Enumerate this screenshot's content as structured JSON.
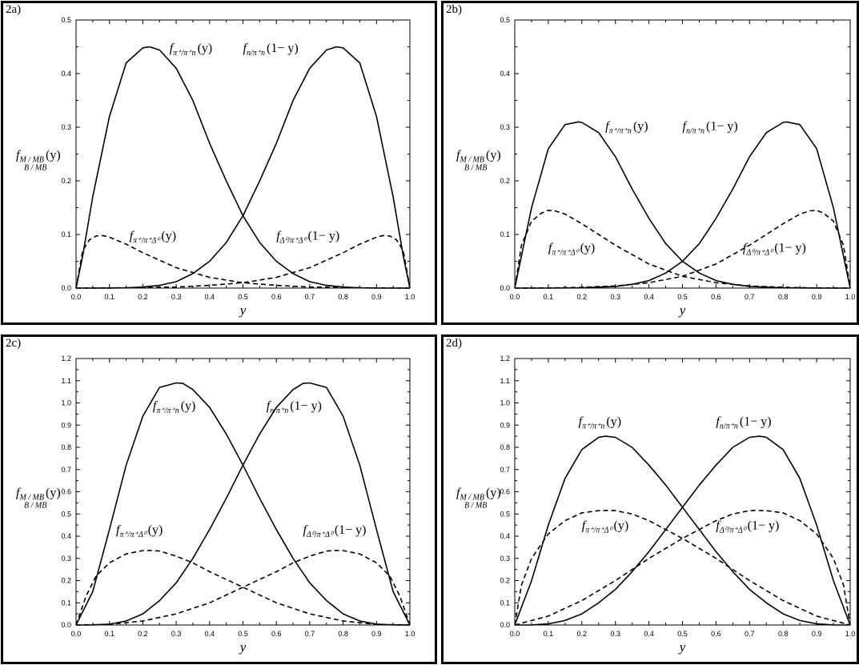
{
  "chart_data": [
    {
      "panel": "2a)",
      "type": "line",
      "xlabel": "y",
      "ylabel": "f",
      "ylabel_sub": "M / MB",
      "ylabel_arg": "(y)",
      "ylabel_sub2": "B / MB",
      "xlim": [
        0.0,
        1.0
      ],
      "ylim": [
        0.0,
        0.5
      ],
      "xticks": [
        "0.0",
        "0.1",
        "0.2",
        "0.3",
        "0.4",
        "0.5",
        "0.6",
        "0.7",
        "0.8",
        "0.9",
        "1.0"
      ],
      "yticks": [
        "0.0",
        "0.1",
        "0.2",
        "0.3",
        "0.4",
        "0.5"
      ],
      "series": [
        {
          "style": "solid",
          "x": [
            0,
            0.02,
            0.05,
            0.1,
            0.15,
            0.2,
            0.22,
            0.25,
            0.3,
            0.35,
            0.4,
            0.45,
            0.5,
            0.55,
            0.6,
            0.65,
            0.7,
            0.75,
            0.8,
            0.85,
            0.9,
            0.95,
            1.0
          ],
          "y": [
            0,
            0.06,
            0.17,
            0.32,
            0.42,
            0.448,
            0.45,
            0.444,
            0.41,
            0.35,
            0.27,
            0.2,
            0.135,
            0.085,
            0.05,
            0.027,
            0.012,
            0.005,
            0.002,
            0.0005,
            0.0001,
            0,
            0
          ]
        },
        {
          "style": "solid",
          "x": [
            0,
            0.05,
            0.1,
            0.15,
            0.2,
            0.25,
            0.3,
            0.35,
            0.4,
            0.45,
            0.5,
            0.55,
            0.6,
            0.65,
            0.7,
            0.75,
            0.78,
            0.8,
            0.85,
            0.9,
            0.95,
            0.98,
            1.0
          ],
          "y": [
            0,
            0,
            0.0001,
            0.0005,
            0.002,
            0.005,
            0.012,
            0.027,
            0.05,
            0.085,
            0.135,
            0.2,
            0.27,
            0.35,
            0.41,
            0.444,
            0.45,
            0.448,
            0.42,
            0.32,
            0.17,
            0.06,
            0
          ]
        },
        {
          "style": "dashed",
          "x": [
            0,
            0.02,
            0.04,
            0.06,
            0.08,
            0.1,
            0.15,
            0.2,
            0.3,
            0.4,
            0.5,
            0.6,
            0.7,
            0.8,
            0.9,
            1.0
          ],
          "y": [
            0,
            0.07,
            0.09,
            0.097,
            0.098,
            0.095,
            0.082,
            0.066,
            0.038,
            0.02,
            0.01,
            0.005,
            0.002,
            0.001,
            0.0003,
            0
          ]
        },
        {
          "style": "dashed",
          "x": [
            0,
            0.1,
            0.2,
            0.3,
            0.4,
            0.5,
            0.6,
            0.7,
            0.8,
            0.85,
            0.9,
            0.92,
            0.94,
            0.96,
            0.98,
            1.0
          ],
          "y": [
            0,
            0.0003,
            0.001,
            0.002,
            0.005,
            0.01,
            0.02,
            0.038,
            0.066,
            0.082,
            0.095,
            0.098,
            0.097,
            0.09,
            0.07,
            0
          ]
        }
      ],
      "annotations": [
        {
          "base": "f",
          "sub": "π⁺/π⁺n",
          "arg": "(y)",
          "x": 0.28,
          "y": 0.44
        },
        {
          "base": "f",
          "sub": "n/π⁺n",
          "arg": "(1− y)",
          "x": 0.5,
          "y": 0.44
        },
        {
          "base": "f",
          "sub": "π⁺/π⁺Δ⁰",
          "arg": "(y)",
          "x": 0.16,
          "y": 0.09
        },
        {
          "base": "f",
          "sub": "Δ⁰/π⁺Δ⁰",
          "arg": "(1− y)",
          "x": 0.6,
          "y": 0.09
        }
      ]
    },
    {
      "panel": "2b)",
      "type": "line",
      "xlabel": "y",
      "ylabel": "f",
      "ylabel_sub": "M / MB",
      "ylabel_arg": "(y)",
      "ylabel_sub2": "B / MB",
      "xlim": [
        0.0,
        1.0
      ],
      "ylim": [
        0.0,
        0.5
      ],
      "xticks": [
        "0.0",
        "0.1",
        "0.2",
        "0.3",
        "0.4",
        "0.5",
        "0.6",
        "0.7",
        "0.8",
        "0.9",
        "1.0"
      ],
      "yticks": [
        "0.0",
        "0.1",
        "0.2",
        "0.3",
        "0.4",
        "0.5"
      ],
      "series": [
        {
          "style": "solid",
          "x": [
            0,
            0.02,
            0.05,
            0.1,
            0.15,
            0.19,
            0.2,
            0.25,
            0.3,
            0.35,
            0.4,
            0.45,
            0.5,
            0.55,
            0.6,
            0.65,
            0.7,
            0.8,
            0.9,
            1.0
          ],
          "y": [
            0,
            0.06,
            0.15,
            0.26,
            0.305,
            0.31,
            0.309,
            0.29,
            0.245,
            0.185,
            0.13,
            0.083,
            0.05,
            0.028,
            0.014,
            0.007,
            0.003,
            0.0005,
            0,
            0
          ]
        },
        {
          "style": "solid",
          "x": [
            0,
            0.1,
            0.2,
            0.3,
            0.35,
            0.4,
            0.45,
            0.5,
            0.55,
            0.6,
            0.65,
            0.7,
            0.75,
            0.8,
            0.81,
            0.85,
            0.9,
            0.95,
            0.98,
            1.0
          ],
          "y": [
            0,
            0,
            0.0005,
            0.003,
            0.007,
            0.014,
            0.028,
            0.05,
            0.083,
            0.13,
            0.185,
            0.245,
            0.29,
            0.309,
            0.31,
            0.305,
            0.26,
            0.15,
            0.06,
            0
          ]
        },
        {
          "style": "dashed",
          "x": [
            0,
            0.02,
            0.05,
            0.08,
            0.1,
            0.12,
            0.15,
            0.2,
            0.3,
            0.4,
            0.5,
            0.6,
            0.7,
            0.8,
            0.9,
            1.0
          ],
          "y": [
            0,
            0.08,
            0.125,
            0.14,
            0.145,
            0.144,
            0.138,
            0.12,
            0.08,
            0.045,
            0.022,
            0.01,
            0.004,
            0.0015,
            0.0003,
            0
          ]
        },
        {
          "style": "dashed",
          "x": [
            0,
            0.1,
            0.2,
            0.3,
            0.4,
            0.5,
            0.6,
            0.7,
            0.8,
            0.85,
            0.88,
            0.9,
            0.92,
            0.95,
            0.98,
            1.0
          ],
          "y": [
            0,
            0.0003,
            0.0015,
            0.004,
            0.01,
            0.022,
            0.045,
            0.08,
            0.12,
            0.138,
            0.144,
            0.145,
            0.14,
            0.125,
            0.08,
            0
          ]
        }
      ],
      "annotations": [
        {
          "base": "f",
          "sub": "π⁺/π⁺n",
          "arg": "(y)",
          "x": 0.27,
          "y": 0.295
        },
        {
          "base": "f",
          "sub": "n/π⁺n",
          "arg": "(1− y)",
          "x": 0.5,
          "y": 0.295
        },
        {
          "base": "f",
          "sub": "π⁺/π⁺Δ⁰",
          "arg": "(y)",
          "x": 0.1,
          "y": 0.068
        },
        {
          "base": "f",
          "sub": "Δ⁰/π⁺Δ⁰",
          "arg": "(1− y)",
          "x": 0.68,
          "y": 0.068
        }
      ]
    },
    {
      "panel": "2c)",
      "type": "line",
      "xlabel": "y",
      "ylabel": "f",
      "ylabel_sub": "M / MB",
      "ylabel_arg": "(y)",
      "ylabel_sub2": "B / MB",
      "xlim": [
        0.0,
        1.0
      ],
      "ylim": [
        0.0,
        1.2
      ],
      "xticks": [
        "0.0",
        "0.1",
        "0.2",
        "0.3",
        "0.4",
        "0.5",
        "0.6",
        "0.7",
        "0.8",
        "0.9",
        "1.0"
      ],
      "yticks": [
        "0.0",
        "0.1",
        "0.2",
        "0.3",
        "0.4",
        "0.5",
        "0.6",
        "0.7",
        "0.8",
        "0.9",
        "1.0",
        "1.1",
        "1.2"
      ],
      "series": [
        {
          "style": "solid",
          "x": [
            0,
            0.05,
            0.1,
            0.15,
            0.2,
            0.25,
            0.3,
            0.32,
            0.35,
            0.4,
            0.45,
            0.5,
            0.55,
            0.6,
            0.65,
            0.7,
            0.75,
            0.8,
            0.85,
            0.9,
            0.95,
            1.0
          ],
          "y": [
            0,
            0.15,
            0.43,
            0.72,
            0.94,
            1.07,
            1.09,
            1.088,
            1.06,
            0.98,
            0.86,
            0.72,
            0.57,
            0.43,
            0.3,
            0.19,
            0.11,
            0.05,
            0.018,
            0.004,
            0.0003,
            0
          ]
        },
        {
          "style": "solid",
          "x": [
            0,
            0.05,
            0.1,
            0.15,
            0.2,
            0.25,
            0.3,
            0.35,
            0.4,
            0.45,
            0.5,
            0.55,
            0.6,
            0.65,
            0.68,
            0.7,
            0.75,
            0.8,
            0.85,
            0.9,
            0.95,
            1.0
          ],
          "y": [
            0,
            0.0003,
            0.004,
            0.018,
            0.05,
            0.11,
            0.19,
            0.3,
            0.43,
            0.57,
            0.72,
            0.86,
            0.98,
            1.06,
            1.088,
            1.09,
            1.07,
            0.94,
            0.72,
            0.43,
            0.15,
            0
          ]
        },
        {
          "style": "dashed",
          "x": [
            0,
            0.03,
            0.06,
            0.1,
            0.15,
            0.2,
            0.22,
            0.25,
            0.3,
            0.35,
            0.4,
            0.5,
            0.6,
            0.7,
            0.8,
            0.9,
            1.0
          ],
          "y": [
            0,
            0.13,
            0.22,
            0.28,
            0.32,
            0.335,
            0.336,
            0.333,
            0.31,
            0.28,
            0.24,
            0.17,
            0.1,
            0.05,
            0.018,
            0.003,
            0
          ]
        },
        {
          "style": "dashed",
          "x": [
            0,
            0.1,
            0.2,
            0.3,
            0.4,
            0.5,
            0.6,
            0.65,
            0.7,
            0.75,
            0.78,
            0.8,
            0.85,
            0.9,
            0.94,
            0.97,
            1.0
          ],
          "y": [
            0,
            0.003,
            0.018,
            0.05,
            0.1,
            0.17,
            0.24,
            0.28,
            0.31,
            0.333,
            0.336,
            0.335,
            0.32,
            0.28,
            0.22,
            0.13,
            0
          ]
        }
      ],
      "annotations": [
        {
          "base": "f",
          "sub": "π⁺/π⁺n",
          "arg": "(y)",
          "x": 0.23,
          "y": 0.97
        },
        {
          "base": "f",
          "sub": "n/π⁺n",
          "arg": "(1− y)",
          "x": 0.57,
          "y": 0.97
        },
        {
          "base": "f",
          "sub": "π⁺/π⁺Δ⁰",
          "arg": "(y)",
          "x": 0.12,
          "y": 0.41
        },
        {
          "base": "f",
          "sub": "Δ⁰/π⁺Δ⁰",
          "arg": "(1− y)",
          "x": 0.68,
          "y": 0.41
        }
      ]
    },
    {
      "panel": "2d)",
      "type": "line",
      "xlabel": "y",
      "ylabel": "f",
      "ylabel_sub": "M / MB",
      "ylabel_arg": "(y)",
      "ylabel_sub2": "B / MB",
      "xlim": [
        0.0,
        1.0
      ],
      "ylim": [
        0.0,
        1.2
      ],
      "xticks": [
        "0.0",
        "0.1",
        "0.2",
        "0.3",
        "0.4",
        "0.5",
        "0.6",
        "0.7",
        "0.8",
        "0.9",
        "1.0"
      ],
      "yticks": [
        "0.0",
        "0.1",
        "0.2",
        "0.3",
        "0.4",
        "0.5",
        "0.6",
        "0.7",
        "0.8",
        "0.9",
        "1.0",
        "1.1",
        "1.2"
      ],
      "series": [
        {
          "style": "solid",
          "x": [
            0,
            0.05,
            0.1,
            0.15,
            0.2,
            0.25,
            0.27,
            0.3,
            0.35,
            0.4,
            0.45,
            0.5,
            0.55,
            0.6,
            0.65,
            0.7,
            0.75,
            0.8,
            0.85,
            0.9,
            0.95,
            1.0
          ],
          "y": [
            0,
            0.2,
            0.45,
            0.66,
            0.79,
            0.845,
            0.85,
            0.845,
            0.8,
            0.72,
            0.63,
            0.53,
            0.43,
            0.33,
            0.24,
            0.16,
            0.1,
            0.05,
            0.02,
            0.005,
            0.0005,
            0
          ]
        },
        {
          "style": "solid",
          "x": [
            0,
            0.05,
            0.1,
            0.15,
            0.2,
            0.25,
            0.3,
            0.35,
            0.4,
            0.45,
            0.5,
            0.55,
            0.6,
            0.65,
            0.7,
            0.73,
            0.75,
            0.8,
            0.85,
            0.9,
            0.95,
            1.0
          ],
          "y": [
            0,
            0.0005,
            0.005,
            0.02,
            0.05,
            0.1,
            0.16,
            0.24,
            0.33,
            0.43,
            0.53,
            0.63,
            0.72,
            0.8,
            0.845,
            0.85,
            0.845,
            0.79,
            0.66,
            0.45,
            0.2,
            0
          ]
        },
        {
          "style": "dashed",
          "x": [
            0,
            0.02,
            0.05,
            0.1,
            0.15,
            0.2,
            0.25,
            0.28,
            0.3,
            0.35,
            0.4,
            0.5,
            0.6,
            0.7,
            0.8,
            0.9,
            1.0
          ],
          "y": [
            0,
            0.18,
            0.3,
            0.41,
            0.47,
            0.505,
            0.515,
            0.516,
            0.515,
            0.5,
            0.47,
            0.39,
            0.3,
            0.2,
            0.11,
            0.04,
            0
          ]
        },
        {
          "style": "dashed",
          "x": [
            0,
            0.1,
            0.2,
            0.3,
            0.4,
            0.5,
            0.6,
            0.65,
            0.7,
            0.72,
            0.75,
            0.8,
            0.85,
            0.9,
            0.95,
            0.98,
            1.0
          ],
          "y": [
            0,
            0.04,
            0.11,
            0.2,
            0.3,
            0.39,
            0.47,
            0.5,
            0.515,
            0.516,
            0.515,
            0.505,
            0.47,
            0.41,
            0.3,
            0.18,
            0
          ]
        }
      ],
      "annotations": [
        {
          "base": "f",
          "sub": "π⁺/π⁺n",
          "arg": "(y)",
          "x": 0.19,
          "y": 0.9
        },
        {
          "base": "f",
          "sub": "n/π⁺n",
          "arg": "(1− y)",
          "x": 0.6,
          "y": 0.9
        },
        {
          "base": "f",
          "sub": "π⁺/π⁺Δ⁰",
          "arg": "(y)",
          "x": 0.2,
          "y": 0.43
        },
        {
          "base": "f",
          "sub": "Δ⁰/π⁺Δ⁰",
          "arg": "(1− y)",
          "x": 0.6,
          "y": 0.43
        }
      ]
    }
  ]
}
